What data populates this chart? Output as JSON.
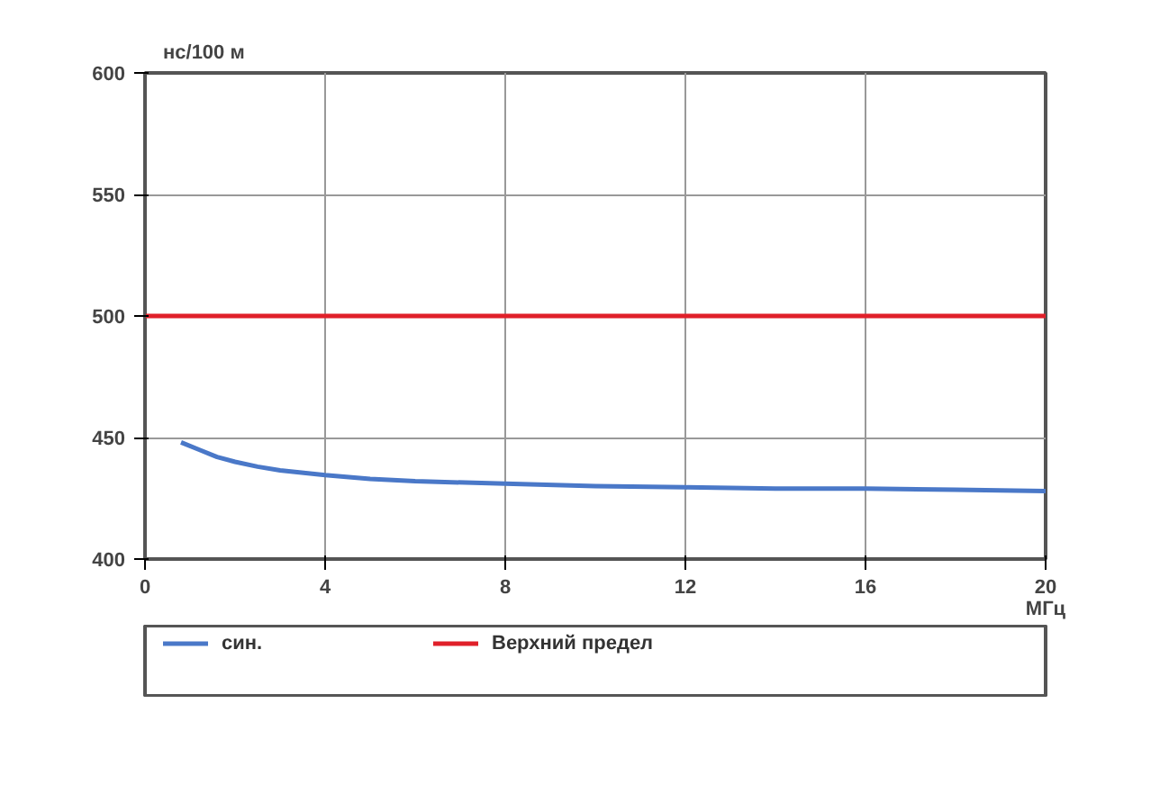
{
  "chart_data": {
    "type": "line",
    "ylabel": "нс/100 м",
    "xlabel": "МГц",
    "xlim": [
      0,
      20
    ],
    "xticks": [
      0,
      4,
      8,
      12,
      16,
      20
    ],
    "ylim": [
      400,
      600
    ],
    "yticks": [
      400,
      450,
      500,
      550,
      600
    ],
    "grid": true,
    "legend": "bottom",
    "line_style": "solid",
    "series": [
      {
        "name": "син.",
        "color": "#4a78c8",
        "x": [
          0.8,
          1.2,
          1.6,
          2,
          2.5,
          3,
          4,
          5,
          6,
          8,
          10,
          12,
          14,
          16,
          18,
          20
        ],
        "values": [
          448,
          445,
          442,
          440,
          438,
          436.5,
          434.5,
          433,
          432,
          431,
          430,
          429.5,
          429,
          429,
          428.5,
          428
        ]
      },
      {
        "name": "Верхний предел",
        "color": "#e0202a",
        "x": [
          0,
          20
        ],
        "values": [
          500,
          500
        ]
      }
    ]
  }
}
